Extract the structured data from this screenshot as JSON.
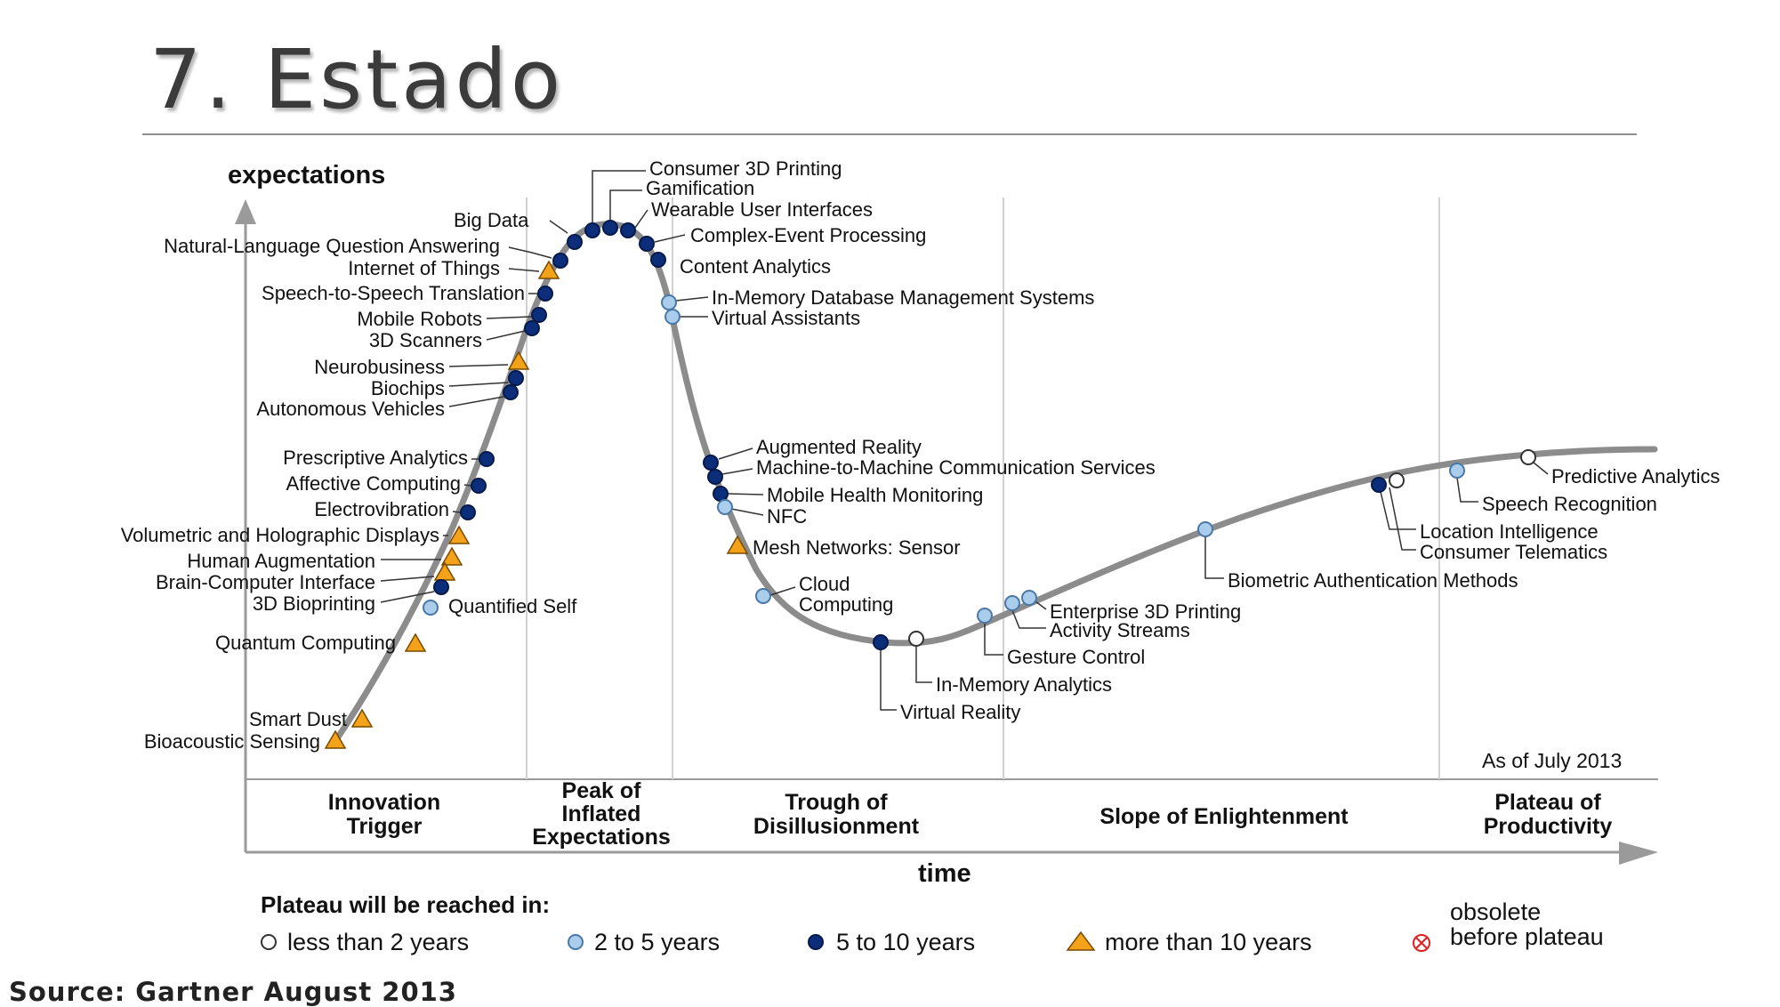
{
  "slide": {
    "title": "7. Estado",
    "source": "Source: Gartner August 2013"
  },
  "colors": {
    "curve": "#8c8c8c",
    "less_than_2": "#ffffff",
    "two_to_five": "#a9cdea",
    "five_to_ten": "#0c2e7a",
    "more_than_10": "#f5a21b",
    "obsolete": "#e02020"
  },
  "chart": {
    "y_axis_label": "expectations",
    "x_axis_label": "time",
    "as_of": "As of July 2013",
    "phases": [
      {
        "id": "innovation",
        "lines": [
          "Innovation",
          "Trigger"
        ]
      },
      {
        "id": "peak",
        "lines": [
          "Peak of",
          "Inflated",
          "Expectations"
        ]
      },
      {
        "id": "trough",
        "lines": [
          "Trough of",
          "Disillusionment"
        ]
      },
      {
        "id": "slope",
        "lines": [
          "Slope of Enlightenment"
        ]
      },
      {
        "id": "plateau",
        "lines": [
          "Plateau of",
          "Productivity"
        ]
      }
    ],
    "technologies": [
      {
        "name": "Consumer 3D Printing",
        "category": "5_to_10"
      },
      {
        "name": "Gamification",
        "category": "5_to_10"
      },
      {
        "name": "Wearable User Interfaces",
        "category": "5_to_10"
      },
      {
        "name": "Complex-Event Processing",
        "category": "5_to_10"
      },
      {
        "name": "Content Analytics",
        "category": "5_to_10"
      },
      {
        "name": "Big Data",
        "category": "5_to_10"
      },
      {
        "name": "Natural-Language Question Answering",
        "category": "5_to_10"
      },
      {
        "name": "Internet of Things",
        "category": "more_than_10"
      },
      {
        "name": "Speech-to-Speech Translation",
        "category": "5_to_10"
      },
      {
        "name": "Mobile Robots",
        "category": "5_to_10"
      },
      {
        "name": "3D Scanners",
        "category": "5_to_10"
      },
      {
        "name": "Neurobusiness",
        "category": "more_than_10"
      },
      {
        "name": "Biochips",
        "category": "5_to_10"
      },
      {
        "name": "Autonomous Vehicles",
        "category": "5_to_10"
      },
      {
        "name": "Prescriptive Analytics",
        "category": "5_to_10"
      },
      {
        "name": "Affective Computing",
        "category": "5_to_10"
      },
      {
        "name": "Electrovibration",
        "category": "5_to_10"
      },
      {
        "name": "Volumetric and Holographic Displays",
        "category": "more_than_10"
      },
      {
        "name": "Human Augmentation",
        "category": "more_than_10"
      },
      {
        "name": "Brain-Computer Interface",
        "category": "more_than_10"
      },
      {
        "name": "3D Bioprinting",
        "category": "5_to_10"
      },
      {
        "name": "Quantified Self",
        "category": "2_to_5"
      },
      {
        "name": "Quantum Computing",
        "category": "more_than_10"
      },
      {
        "name": "Smart Dust",
        "category": "more_than_10"
      },
      {
        "name": "Bioacoustic Sensing",
        "category": "more_than_10"
      },
      {
        "name": "In-Memory Database Management Systems",
        "category": "2_to_5"
      },
      {
        "name": "Virtual Assistants",
        "category": "2_to_5"
      },
      {
        "name": "Augmented Reality",
        "category": "5_to_10"
      },
      {
        "name": "Machine-to-Machine Communication Services",
        "category": "5_to_10"
      },
      {
        "name": "Mobile Health Monitoring",
        "category": "5_to_10"
      },
      {
        "name": "NFC",
        "category": "2_to_5"
      },
      {
        "name": "Mesh Networks: Sensor",
        "category": "more_than_10"
      },
      {
        "name": "Cloud Computing",
        "category": "2_to_5"
      },
      {
        "name": "Enterprise 3D Printing",
        "category": "2_to_5"
      },
      {
        "name": "Activity Streams",
        "category": "2_to_5"
      },
      {
        "name": "Gesture Control",
        "category": "2_to_5"
      },
      {
        "name": "In-Memory Analytics",
        "category": "less_than_2"
      },
      {
        "name": "Virtual Reality",
        "category": "5_to_10"
      },
      {
        "name": "Biometric Authentication Methods",
        "category": "2_to_5"
      },
      {
        "name": "Location Intelligence",
        "category": "5_to_10"
      },
      {
        "name": "Consumer Telematics",
        "category": "less_than_2"
      },
      {
        "name": "Speech Recognition",
        "category": "2_to_5"
      },
      {
        "name": "Predictive Analytics",
        "category": "less_than_2"
      }
    ]
  },
  "legend": {
    "title": "Plateau will be reached in:",
    "items": [
      {
        "shape": "circle-empty",
        "label": "less than 2 years"
      },
      {
        "shape": "circle-light",
        "label": "2 to 5 years"
      },
      {
        "shape": "circle-dark",
        "label": "5 to 10 years"
      },
      {
        "shape": "triangle",
        "label": "more than 10 years"
      },
      {
        "shape": "crossed-circle",
        "lines": [
          "obsolete",
          "before plateau"
        ]
      }
    ]
  }
}
